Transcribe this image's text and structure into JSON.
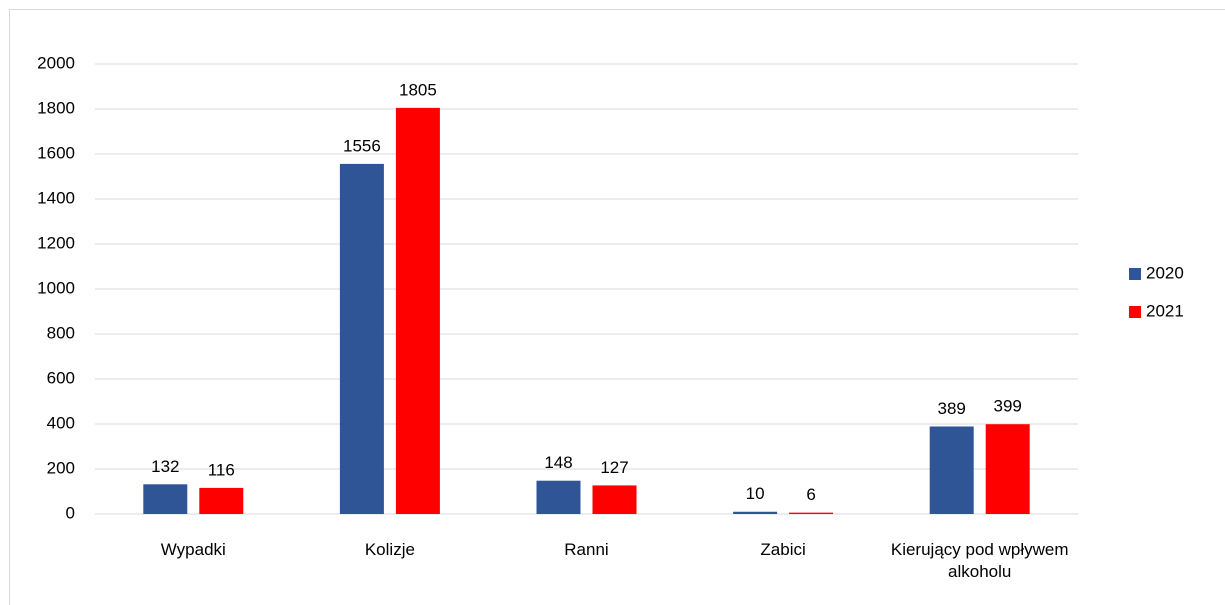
{
  "chart_data": {
    "type": "bar",
    "categories": [
      "Wypadki",
      "Kolizje",
      "Ranni",
      "Zabici",
      "Kierujący pod wpływem alkoholu"
    ],
    "series": [
      {
        "name": "2020",
        "color": "#2f5597",
        "values": [
          132,
          1556,
          148,
          10,
          389
        ]
      },
      {
        "name": "2021",
        "color": "#ff0000",
        "values": [
          116,
          1805,
          127,
          6,
          399
        ]
      }
    ],
    "ylim": [
      0,
      2000
    ],
    "yticks": [
      0,
      200,
      400,
      600,
      800,
      1000,
      1200,
      1400,
      1600,
      1800,
      2000
    ],
    "grid": true,
    "legend": "right"
  }
}
